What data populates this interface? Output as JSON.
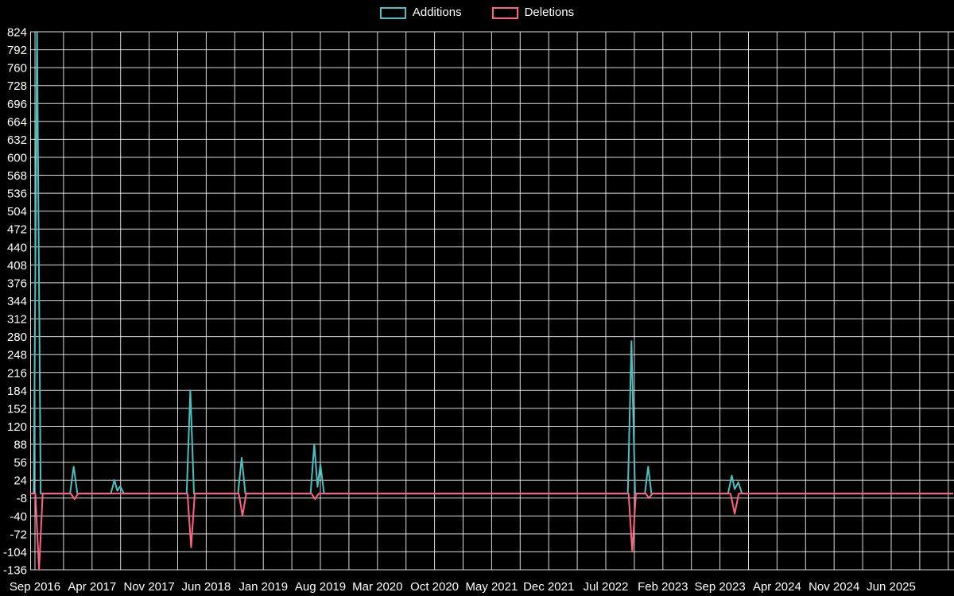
{
  "page": {
    "background": "#000000",
    "text_color": "#ffffff"
  },
  "chart_data": {
    "type": "line",
    "title": "",
    "legend_position": "top-center",
    "x_axis": {
      "tick_labels": [
        "Sep 2016",
        "Apr 2017",
        "Nov 2017",
        "Jun 2018",
        "Jan 2019",
        "Aug 2019",
        "Mar 2020",
        "Oct 2020",
        "May 2021",
        "Dec 2021",
        "Jul 2022",
        "Feb 2023",
        "Sep 2023",
        "Apr 2024",
        "Nov 2024",
        "Jun 2025"
      ],
      "months_between_labels": 7,
      "points_x_unit": "months_since_Sep_2016"
    },
    "y_axis": {
      "min": -136,
      "max": 824,
      "step": 32,
      "ticks": [
        824,
        792,
        760,
        728,
        696,
        664,
        632,
        600,
        568,
        536,
        504,
        472,
        440,
        408,
        376,
        344,
        312,
        280,
        248,
        216,
        184,
        152,
        120,
        88,
        56,
        24,
        -8,
        -40,
        -72,
        -104,
        -136
      ]
    },
    "grid": {
      "show": true,
      "color": "rgba(255,255,255,0.85)",
      "vertical_spacing_months": 3.5
    },
    "baseline": 0,
    "series": [
      {
        "name": "Additions",
        "color": "#4bc0c0",
        "points": [
          [
            -0.6,
            0
          ],
          [
            -0.15,
            0
          ],
          [
            0.25,
            824
          ],
          [
            0.7,
            0
          ],
          [
            4.3,
            0
          ],
          [
            4.75,
            48
          ],
          [
            5.2,
            0
          ],
          [
            9.3,
            0
          ],
          [
            9.75,
            24
          ],
          [
            10.1,
            5
          ],
          [
            10.45,
            13
          ],
          [
            10.9,
            0
          ],
          [
            18.6,
            0
          ],
          [
            19.05,
            184
          ],
          [
            19.5,
            0
          ],
          [
            24.9,
            0
          ],
          [
            25.35,
            64
          ],
          [
            25.8,
            0
          ],
          [
            33.8,
            0
          ],
          [
            34.25,
            88
          ],
          [
            34.65,
            12
          ],
          [
            35.0,
            52
          ],
          [
            35.45,
            0
          ],
          [
            72.7,
            0
          ],
          [
            73.15,
            272
          ],
          [
            73.6,
            0
          ],
          [
            74.8,
            0
          ],
          [
            75.2,
            48
          ],
          [
            75.6,
            0
          ],
          [
            85.0,
            0
          ],
          [
            85.45,
            32
          ],
          [
            85.8,
            8
          ],
          [
            86.25,
            20
          ],
          [
            86.7,
            0
          ],
          [
            112.6,
            0
          ]
        ]
      },
      {
        "name": "Deletions",
        "color": "#ff6384",
        "points": [
          [
            -0.6,
            0
          ],
          [
            0.05,
            0
          ],
          [
            0.5,
            -136
          ],
          [
            0.95,
            0
          ],
          [
            4.4,
            0
          ],
          [
            4.85,
            -10
          ],
          [
            5.3,
            0
          ],
          [
            18.7,
            0
          ],
          [
            19.15,
            -96
          ],
          [
            19.6,
            0
          ],
          [
            25.0,
            0
          ],
          [
            25.45,
            -40
          ],
          [
            25.9,
            0
          ],
          [
            33.9,
            0
          ],
          [
            34.35,
            -10
          ],
          [
            34.8,
            0
          ],
          [
            72.8,
            0
          ],
          [
            73.25,
            -104
          ],
          [
            73.7,
            0
          ],
          [
            74.9,
            0
          ],
          [
            75.3,
            -8
          ],
          [
            75.7,
            0
          ],
          [
            85.3,
            0
          ],
          [
            85.8,
            -36
          ],
          [
            86.3,
            0
          ],
          [
            112.6,
            0
          ]
        ]
      }
    ]
  }
}
